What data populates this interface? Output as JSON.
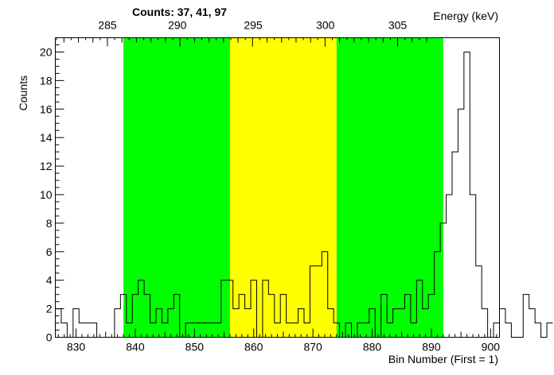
{
  "chart_data": {
    "type": "histogram",
    "title": "Counts:   37,   41,   97",
    "xlabel": "Bin Number (First = 1)",
    "ylabel": "Counts",
    "x2label": "Energy (keV)",
    "xlim": [
      826.5,
      901.5
    ],
    "ylim": [
      0,
      21
    ],
    "xticks": [
      830,
      840,
      850,
      860,
      870,
      880,
      890,
      900
    ],
    "yticks": [
      0,
      2,
      4,
      6,
      8,
      10,
      12,
      14,
      16,
      18,
      20
    ],
    "energy_ticks": [
      285,
      290,
      295,
      300,
      305
    ],
    "energy_axis_bins": [
      835.3,
      847.1,
      859.9,
      872.1,
      884.3
    ],
    "regions": [
      {
        "from_bin": 838.0,
        "to_bin": 856.0,
        "color": "#00ff00"
      },
      {
        "from_bin": 856.0,
        "to_bin": 874.0,
        "color": "#ffff00"
      },
      {
        "from_bin": 874.0,
        "to_bin": 892.0,
        "color": "#00ff00"
      }
    ],
    "bin_start": 827,
    "values": [
      2,
      1,
      0,
      2,
      1,
      1,
      1,
      0,
      0,
      0,
      2,
      3,
      1,
      3,
      4,
      3,
      1,
      2,
      1,
      2,
      3,
      0,
      1,
      1,
      1,
      1,
      1,
      1,
      4,
      4,
      2,
      3,
      2,
      4,
      0,
      4,
      3,
      1,
      3,
      1,
      1,
      2,
      1,
      5,
      5,
      6,
      2,
      1,
      0,
      1,
      0,
      1,
      1,
      2,
      0,
      3,
      1,
      2,
      2,
      3,
      1,
      4,
      2,
      3,
      6,
      8,
      10,
      13,
      16,
      20,
      10,
      5,
      2,
      0,
      1,
      2,
      1,
      0,
      0,
      3,
      2,
      1,
      0,
      1
    ],
    "line_color": "#000000"
  }
}
